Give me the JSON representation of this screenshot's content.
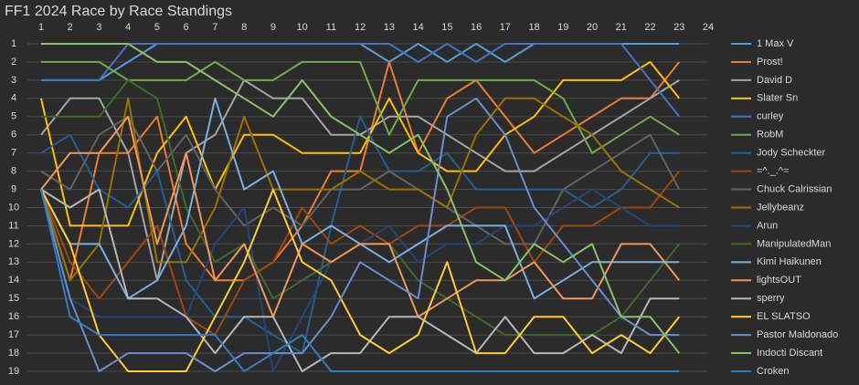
{
  "chart_data": {
    "type": "line",
    "title": "FF1 2024 Race by Race Standings",
    "x": [
      1,
      2,
      3,
      4,
      5,
      6,
      7,
      8,
      9,
      10,
      11,
      12,
      13,
      14,
      15,
      16,
      17,
      18,
      19,
      20,
      21,
      22,
      23
    ],
    "xlim": [
      1,
      24
    ],
    "xticks": [
      1,
      2,
      3,
      4,
      5,
      6,
      7,
      8,
      9,
      10,
      11,
      12,
      13,
      14,
      15,
      16,
      17,
      18,
      19,
      20,
      21,
      22,
      23,
      24
    ],
    "ylim": [
      1,
      19
    ],
    "yticks": [
      1,
      2,
      3,
      4,
      5,
      6,
      7,
      8,
      9,
      10,
      11,
      12,
      13,
      14,
      15,
      16,
      17,
      18,
      19
    ],
    "y_inverted": true,
    "x_axis_position": "top",
    "grid": true,
    "legend": "right",
    "series": [
      {
        "name": "1 Max V",
        "color": "#5b9bd5",
        "values": [
          3,
          3,
          3,
          2,
          1,
          1,
          1,
          1,
          1,
          1,
          1,
          1,
          2,
          1,
          2,
          1,
          2,
          1,
          1,
          1,
          1,
          1,
          1
        ]
      },
      {
        "name": "Prost!",
        "color": "#ed7d31",
        "values": [
          9,
          14,
          7,
          7,
          5,
          12,
          14,
          14,
          13,
          11,
          8,
          8,
          2,
          7,
          4,
          3,
          5,
          7,
          6,
          5,
          4,
          4,
          2
        ]
      },
      {
        "name": "David D",
        "color": "#a5a5a5",
        "values": [
          6,
          4,
          4,
          7,
          14,
          7,
          6,
          3,
          4,
          4,
          6,
          6,
          5,
          5,
          6,
          7,
          8,
          8,
          7,
          6,
          5,
          4,
          3
        ]
      },
      {
        "name": "Slater Sn",
        "color": "#ffc000",
        "values": [
          4,
          11,
          11,
          11,
          7,
          5,
          9,
          6,
          6,
          7,
          7,
          7,
          4,
          7,
          8,
          8,
          6,
          5,
          3,
          3,
          3,
          2,
          4
        ]
      },
      {
        "name": "curley",
        "color": "#4472c4",
        "values": [
          3,
          3,
          3,
          1,
          1,
          1,
          1,
          1,
          1,
          1,
          1,
          1,
          1,
          2,
          1,
          2,
          1,
          1,
          1,
          1,
          1,
          3,
          5
        ]
      },
      {
        "name": "RobM",
        "color": "#70ad47",
        "values": [
          2,
          2,
          2,
          3,
          3,
          3,
          2,
          3,
          3,
          2,
          2,
          2,
          6,
          3,
          3,
          3,
          3,
          3,
          4,
          7,
          6,
          5,
          6
        ]
      },
      {
        "name": "Jody Scheckter",
        "color": "#255e91",
        "values": [
          7,
          6,
          9,
          10,
          8,
          14,
          16,
          16,
          17,
          18,
          11,
          5,
          8,
          8,
          7,
          9,
          9,
          9,
          9,
          10,
          9,
          7,
          7
        ]
      },
      {
        "name": "=^._.^=",
        "color": "#9e480e",
        "values": [
          9,
          13,
          15,
          13,
          11,
          16,
          17,
          14,
          13,
          10,
          12,
          11,
          12,
          11,
          11,
          10,
          10,
          13,
          11,
          11,
          10,
          10,
          8
        ]
      },
      {
        "name": "Chuck Calrissian",
        "color": "#636363",
        "values": [
          8,
          9,
          6,
          5,
          8,
          6,
          9,
          11,
          10,
          11,
          9,
          9,
          8,
          9,
          10,
          11,
          12,
          12,
          9,
          8,
          7,
          6,
          9
        ]
      },
      {
        "name": "Jellybeanz",
        "color": "#997300",
        "values": [
          9,
          14,
          12,
          4,
          13,
          13,
          10,
          5,
          9,
          9,
          9,
          8,
          9,
          9,
          10,
          6,
          4,
          4,
          5,
          6,
          8,
          9,
          10
        ]
      },
      {
        "name": "Arun",
        "color": "#264478",
        "values": [
          9,
          15,
          16,
          16,
          16,
          16,
          12,
          10,
          19,
          16,
          13,
          12,
          11,
          13,
          12,
          12,
          11,
          11,
          10,
          9,
          10,
          11,
          11
        ]
      },
      {
        "name": "ManipulatedMan",
        "color": "#43682b",
        "values": [
          5,
          5,
          5,
          3,
          4,
          10,
          13,
          12,
          15,
          14,
          13,
          12,
          12,
          14,
          15,
          16,
          17,
          17,
          17,
          17,
          16,
          14,
          12
        ]
      },
      {
        "name": "Kimi Haikunen",
        "color": "#7cafdd",
        "values": [
          9,
          12,
          12,
          15,
          14,
          11,
          4,
          9,
          8,
          12,
          11,
          12,
          13,
          12,
          11,
          11,
          11,
          15,
          14,
          13,
          13,
          13,
          13
        ]
      },
      {
        "name": "lightsOUT",
        "color": "#f1975a",
        "values": [
          9,
          7,
          7,
          5,
          12,
          7,
          14,
          12,
          16,
          12,
          13,
          12,
          12,
          16,
          15,
          14,
          14,
          13,
          15,
          15,
          12,
          12,
          14
        ]
      },
      {
        "name": "sperry",
        "color": "#b7b7b7",
        "values": [
          9,
          10,
          9,
          15,
          15,
          16,
          18,
          16,
          16,
          19,
          18,
          18,
          16,
          16,
          17,
          18,
          16,
          18,
          18,
          17,
          18,
          15,
          15
        ]
      },
      {
        "name": "EL SLATSO",
        "color": "#ffcd33",
        "values": [
          9,
          12,
          17,
          19,
          19,
          19,
          16,
          13,
          9,
          13,
          14,
          17,
          18,
          17,
          13,
          18,
          18,
          16,
          16,
          18,
          17,
          18,
          16
        ]
      },
      {
        "name": "Pastor Maldonado",
        "color": "#698ed0",
        "values": [
          9,
          15,
          19,
          18,
          18,
          18,
          19,
          18,
          18,
          18,
          16,
          13,
          14,
          15,
          5,
          4,
          6,
          10,
          12,
          14,
          16,
          17,
          17
        ]
      },
      {
        "name": "Indocti Discant",
        "color": "#8cc168",
        "values": [
          1,
          1,
          1,
          1,
          2,
          2,
          3,
          4,
          5,
          3,
          5,
          6,
          7,
          6,
          9,
          13,
          14,
          12,
          13,
          12,
          16,
          16,
          18
        ]
      },
      {
        "name": "Croken",
        "color": "#327dc2",
        "values": [
          9,
          16,
          17,
          17,
          17,
          17,
          17,
          19,
          18,
          17,
          19,
          19,
          19,
          19,
          19,
          19,
          19,
          19,
          19,
          19,
          19,
          19,
          19
        ]
      }
    ]
  }
}
